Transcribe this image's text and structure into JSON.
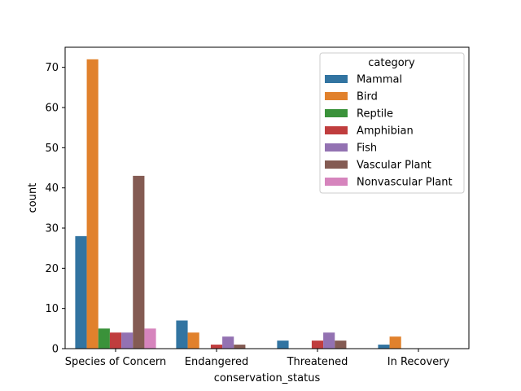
{
  "chart_data": {
    "type": "bar",
    "xlabel": "conservation_status",
    "ylabel": "count",
    "ylim": [
      0,
      75
    ],
    "yticks": [
      0,
      10,
      20,
      30,
      40,
      50,
      60,
      70
    ],
    "categories": [
      "Species of Concern",
      "Endangered",
      "Threatened",
      "In Recovery"
    ],
    "legend": {
      "title": "category",
      "placement": "top-right"
    },
    "series": [
      {
        "name": "Mammal",
        "color": "#3274a1",
        "values": [
          28,
          7,
          2,
          1
        ]
      },
      {
        "name": "Bird",
        "color": "#e1812c",
        "values": [
          72,
          4,
          0,
          3
        ]
      },
      {
        "name": "Reptile",
        "color": "#3a923a",
        "values": [
          5,
          0,
          0,
          0
        ]
      },
      {
        "name": "Amphibian",
        "color": "#c03d3e",
        "values": [
          4,
          1,
          2,
          0
        ]
      },
      {
        "name": "Fish",
        "color": "#9372b2",
        "values": [
          4,
          3,
          4,
          0
        ]
      },
      {
        "name": "Vascular Plant",
        "color": "#845b53",
        "values": [
          43,
          1,
          2,
          0
        ]
      },
      {
        "name": "Nonvascular Plant",
        "color": "#d684bd",
        "values": [
          5,
          0,
          0,
          0
        ]
      }
    ]
  }
}
